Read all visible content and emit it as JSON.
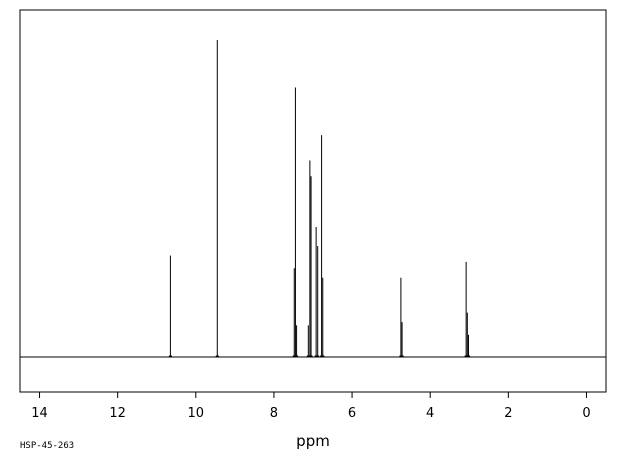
{
  "chart_data": {
    "type": "line",
    "title": "",
    "xlabel": "ppm",
    "ylabel": "",
    "xlim": [
      14.5,
      -0.5
    ],
    "x_reversed": true,
    "ylim": [
      0,
      1
    ],
    "grid": false,
    "legend": "none",
    "x_ticks": [
      14,
      12,
      10,
      8,
      6,
      4,
      2,
      0
    ],
    "x_tick_labels": [
      "14",
      "12",
      "10",
      "8",
      "6",
      "4",
      "2",
      "0"
    ],
    "spectrum_id": "HSP-45-263",
    "peaks": [
      {
        "ppm": 10.65,
        "height": 0.32
      },
      {
        "ppm": 9.45,
        "height": 1.0
      },
      {
        "ppm": 7.48,
        "height": 0.28
      },
      {
        "ppm": 7.45,
        "height": 0.85
      },
      {
        "ppm": 7.42,
        "height": 0.1
      },
      {
        "ppm": 7.12,
        "height": 0.1
      },
      {
        "ppm": 7.08,
        "height": 0.62
      },
      {
        "ppm": 7.05,
        "height": 0.57
      },
      {
        "ppm": 6.92,
        "height": 0.41
      },
      {
        "ppm": 6.88,
        "height": 0.35
      },
      {
        "ppm": 6.78,
        "height": 0.7
      },
      {
        "ppm": 6.75,
        "height": 0.25
      },
      {
        "ppm": 4.75,
        "height": 0.25
      },
      {
        "ppm": 4.72,
        "height": 0.11
      },
      {
        "ppm": 3.08,
        "height": 0.3
      },
      {
        "ppm": 3.05,
        "height": 0.14
      },
      {
        "ppm": 3.02,
        "height": 0.07
      }
    ]
  }
}
